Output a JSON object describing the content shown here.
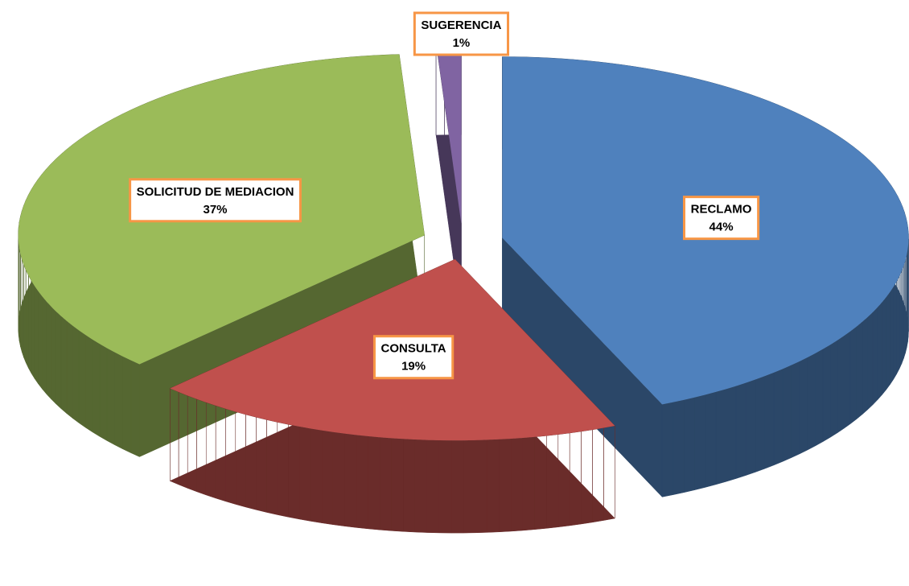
{
  "chart_data": {
    "type": "pie",
    "categories": [
      "RECLAMO",
      "CONSULTA",
      "SOLICITUD DE MEDIACION",
      "SUGERENCIA"
    ],
    "values": [
      44,
      19,
      37,
      1
    ],
    "value_labels": [
      "44%",
      "19%",
      "37%",
      "1%"
    ],
    "colors": [
      "#4f81bd",
      "#c0504d",
      "#9bbb59",
      "#8064a2"
    ]
  }
}
